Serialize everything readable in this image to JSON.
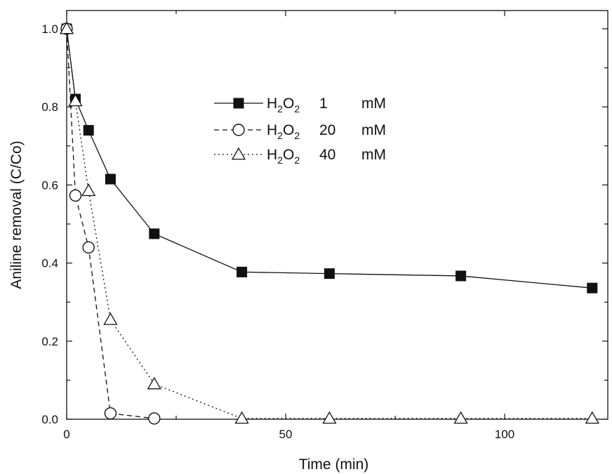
{
  "chart_data": {
    "type": "line",
    "title": "",
    "xlabel": "Time (min)",
    "ylabel": "Aniline removal (C/Co)",
    "xlim": [
      0,
      122
    ],
    "ylim": [
      0,
      1.05
    ],
    "xticks": [
      0,
      50,
      100
    ],
    "yticks": [
      0.0,
      0.2,
      0.4,
      0.6,
      0.8,
      1.0
    ],
    "ytick_labels": [
      "0.0",
      "0.2",
      "0.4",
      "0.6",
      "0.8",
      "1.0"
    ],
    "grid": false,
    "legend_position": "top-center",
    "series": [
      {
        "name": "H2O2 1 mM",
        "legend_main": "H",
        "legend_sub1": "2",
        "legend_mid": "O",
        "legend_sub2": "2",
        "legend_conc": "1",
        "legend_unit": "mM",
        "marker": "filled-square",
        "line": "solid",
        "x": [
          0,
          2,
          5,
          10,
          20,
          40,
          60,
          90,
          120
        ],
        "y": [
          1.0,
          0.82,
          0.74,
          0.615,
          0.475,
          0.377,
          0.373,
          0.367,
          0.336
        ]
      },
      {
        "name": "H2O2 20 mM",
        "legend_main": "H",
        "legend_sub1": "2",
        "legend_mid": "O",
        "legend_sub2": "2",
        "legend_conc": "20",
        "legend_unit": "mM",
        "marker": "open-circle",
        "line": "dashed",
        "x": [
          0,
          2,
          5,
          10,
          20
        ],
        "y": [
          1.0,
          0.573,
          0.44,
          0.015,
          0.002
        ]
      },
      {
        "name": "H2O2 40 mM",
        "legend_main": "H",
        "legend_sub1": "2",
        "legend_mid": "O",
        "legend_sub2": "2",
        "legend_conc": "40",
        "legend_unit": "mM",
        "marker": "open-triangle",
        "line": "dotted",
        "x": [
          0,
          2,
          5,
          10,
          20,
          40,
          60,
          90,
          120
        ],
        "y": [
          1.0,
          0.815,
          0.585,
          0.255,
          0.09,
          0.002,
          0.002,
          0.002,
          0.002
        ]
      }
    ]
  }
}
